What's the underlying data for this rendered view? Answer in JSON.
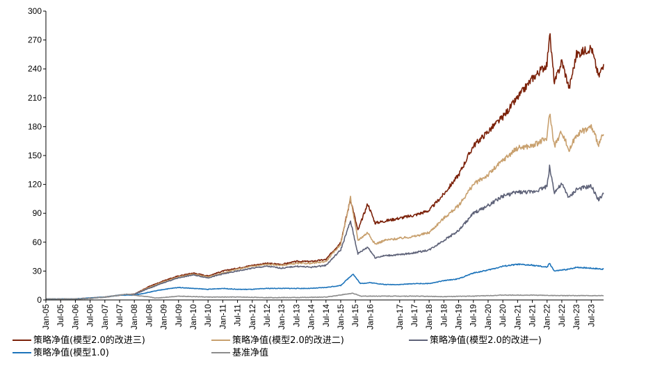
{
  "chart_data": {
    "type": "line",
    "title": "",
    "xlabel": "",
    "ylabel": "",
    "ylim": [
      0,
      300
    ],
    "y_ticks": [
      0,
      30,
      60,
      90,
      120,
      150,
      180,
      210,
      240,
      270,
      300
    ],
    "x_range": [
      "2005-01",
      "2023-12"
    ],
    "x_ticks": [
      "Jan-05",
      "Jul-05",
      "Jan-06",
      "Jul-06",
      "Jan-07",
      "Jul-07",
      "Jan-08",
      "Jul-08",
      "Jan-09",
      "Jul-09",
      "Jan-10",
      "Jul-10",
      "Jan-11",
      "Jul-11",
      "Jan-12",
      "Jul-12",
      "Jan-13",
      "Jul-13",
      "Jan-14",
      "Jul-14",
      "Jan-15",
      "Jul-15",
      "Jan-16",
      "Jan-17",
      "Jul-17",
      "Jan-18",
      "Jul-18",
      "Jan-19",
      "Jul-19",
      "Jan-20",
      "Jul-20",
      "Jan-21",
      "Jul-21",
      "Jan-22",
      "Jul-22",
      "Jan-23",
      "Jul-23"
    ],
    "grid": false,
    "legend_position": "bottom",
    "series": [
      {
        "name": "策略净值(模型2.0的改进三)",
        "color": "#7B2109",
        "points": [
          [
            "2005-01",
            1
          ],
          [
            "2006-01",
            1
          ],
          [
            "2006-07",
            2
          ],
          [
            "2007-01",
            3
          ],
          [
            "2007-07",
            5
          ],
          [
            "2008-01",
            6
          ],
          [
            "2008-07",
            14
          ],
          [
            "2009-01",
            20
          ],
          [
            "2009-07",
            25
          ],
          [
            "2010-01",
            28
          ],
          [
            "2010-07",
            25
          ],
          [
            "2011-01",
            30
          ],
          [
            "2011-07",
            33
          ],
          [
            "2012-01",
            36
          ],
          [
            "2012-07",
            38
          ],
          [
            "2013-01",
            37
          ],
          [
            "2013-07",
            40
          ],
          [
            "2014-01",
            40
          ],
          [
            "2014-07",
            42
          ],
          [
            "2015-01",
            60
          ],
          [
            "2015-05",
            105
          ],
          [
            "2015-08",
            72
          ],
          [
            "2015-12",
            100
          ],
          [
            "2016-03",
            80
          ],
          [
            "2016-07",
            82
          ],
          [
            "2017-01",
            85
          ],
          [
            "2017-07",
            88
          ],
          [
            "2018-01",
            93
          ],
          [
            "2018-07",
            110
          ],
          [
            "2019-01",
            130
          ],
          [
            "2019-07",
            160
          ],
          [
            "2020-01",
            175
          ],
          [
            "2020-07",
            190
          ],
          [
            "2021-01",
            210
          ],
          [
            "2021-07",
            230
          ],
          [
            "2022-01",
            245
          ],
          [
            "2022-02",
            278
          ],
          [
            "2022-04",
            225
          ],
          [
            "2022-07",
            248
          ],
          [
            "2022-10",
            220
          ],
          [
            "2023-01",
            255
          ],
          [
            "2023-07",
            262
          ],
          [
            "2023-10",
            232
          ],
          [
            "2023-12",
            245
          ]
        ]
      },
      {
        "name": "策略净值(模型2.0的改进二)",
        "color": "#C8A06E",
        "points": [
          [
            "2005-01",
            1
          ],
          [
            "2006-01",
            1
          ],
          [
            "2006-07",
            2
          ],
          [
            "2007-01",
            3
          ],
          [
            "2007-07",
            5
          ],
          [
            "2008-01",
            6
          ],
          [
            "2008-07",
            13
          ],
          [
            "2009-01",
            19
          ],
          [
            "2009-07",
            24
          ],
          [
            "2010-01",
            27
          ],
          [
            "2010-07",
            24
          ],
          [
            "2011-01",
            28
          ],
          [
            "2011-07",
            32
          ],
          [
            "2012-01",
            35
          ],
          [
            "2012-07",
            37
          ],
          [
            "2013-01",
            36
          ],
          [
            "2013-07",
            38
          ],
          [
            "2014-01",
            38
          ],
          [
            "2014-07",
            40
          ],
          [
            "2015-01",
            58
          ],
          [
            "2015-05",
            106
          ],
          [
            "2015-08",
            62
          ],
          [
            "2015-12",
            70
          ],
          [
            "2016-03",
            58
          ],
          [
            "2016-07",
            62
          ],
          [
            "2017-01",
            64
          ],
          [
            "2017-07",
            66
          ],
          [
            "2018-01",
            70
          ],
          [
            "2018-07",
            85
          ],
          [
            "2019-01",
            98
          ],
          [
            "2019-07",
            120
          ],
          [
            "2020-01",
            130
          ],
          [
            "2020-07",
            145
          ],
          [
            "2021-01",
            158
          ],
          [
            "2021-07",
            160
          ],
          [
            "2022-01",
            168
          ],
          [
            "2022-02",
            195
          ],
          [
            "2022-04",
            160
          ],
          [
            "2022-07",
            175
          ],
          [
            "2022-10",
            155
          ],
          [
            "2023-01",
            172
          ],
          [
            "2023-07",
            180
          ],
          [
            "2023-10",
            162
          ],
          [
            "2023-12",
            172
          ]
        ]
      },
      {
        "name": "策略净值(模型2.0的改进一)",
        "color": "#5E6278",
        "points": [
          [
            "2005-01",
            1
          ],
          [
            "2006-01",
            1
          ],
          [
            "2006-07",
            2
          ],
          [
            "2007-01",
            3
          ],
          [
            "2007-07",
            5
          ],
          [
            "2008-01",
            6
          ],
          [
            "2008-07",
            12
          ],
          [
            "2009-01",
            18
          ],
          [
            "2009-07",
            23
          ],
          [
            "2010-01",
            26
          ],
          [
            "2010-07",
            23
          ],
          [
            "2011-01",
            27
          ],
          [
            "2011-07",
            30
          ],
          [
            "2012-01",
            33
          ],
          [
            "2012-07",
            35
          ],
          [
            "2013-01",
            33
          ],
          [
            "2013-07",
            35
          ],
          [
            "2014-01",
            34
          ],
          [
            "2014-07",
            36
          ],
          [
            "2015-01",
            52
          ],
          [
            "2015-05",
            82
          ],
          [
            "2015-08",
            48
          ],
          [
            "2015-12",
            55
          ],
          [
            "2016-03",
            44
          ],
          [
            "2016-07",
            46
          ],
          [
            "2017-01",
            47
          ],
          [
            "2017-07",
            49
          ],
          [
            "2018-01",
            52
          ],
          [
            "2018-07",
            62
          ],
          [
            "2019-01",
            72
          ],
          [
            "2019-07",
            90
          ],
          [
            "2020-01",
            98
          ],
          [
            "2020-07",
            108
          ],
          [
            "2021-01",
            112
          ],
          [
            "2021-07",
            112
          ],
          [
            "2022-01",
            118
          ],
          [
            "2022-02",
            138
          ],
          [
            "2022-04",
            112
          ],
          [
            "2022-07",
            120
          ],
          [
            "2022-10",
            106
          ],
          [
            "2023-01",
            115
          ],
          [
            "2023-07",
            118
          ],
          [
            "2023-10",
            104
          ],
          [
            "2023-12",
            110
          ]
        ]
      },
      {
        "name": "策略净值(模型1.0)",
        "color": "#1C73BA",
        "points": [
          [
            "2005-01",
            1
          ],
          [
            "2006-01",
            1
          ],
          [
            "2006-07",
            2
          ],
          [
            "2007-01",
            3
          ],
          [
            "2007-07",
            5
          ],
          [
            "2008-01",
            5
          ],
          [
            "2008-07",
            8
          ],
          [
            "2009-01",
            11
          ],
          [
            "2009-07",
            13
          ],
          [
            "2010-01",
            12
          ],
          [
            "2010-07",
            11
          ],
          [
            "2011-01",
            12
          ],
          [
            "2011-07",
            11
          ],
          [
            "2012-01",
            11
          ],
          [
            "2012-07",
            12
          ],
          [
            "2013-01",
            12
          ],
          [
            "2013-07",
            12
          ],
          [
            "2014-01",
            12
          ],
          [
            "2014-07",
            13
          ],
          [
            "2015-01",
            15
          ],
          [
            "2015-06",
            27
          ],
          [
            "2015-09",
            17
          ],
          [
            "2016-01",
            18
          ],
          [
            "2016-07",
            16
          ],
          [
            "2017-01",
            16
          ],
          [
            "2017-07",
            17
          ],
          [
            "2018-01",
            17
          ],
          [
            "2018-07",
            20
          ],
          [
            "2019-01",
            22
          ],
          [
            "2019-07",
            28
          ],
          [
            "2020-01",
            31
          ],
          [
            "2020-07",
            35
          ],
          [
            "2021-01",
            37
          ],
          [
            "2021-07",
            36
          ],
          [
            "2022-01",
            34
          ],
          [
            "2022-02",
            38
          ],
          [
            "2022-04",
            30
          ],
          [
            "2022-10",
            32
          ],
          [
            "2023-01",
            34
          ],
          [
            "2023-07",
            33
          ],
          [
            "2023-12",
            32
          ]
        ]
      },
      {
        "name": "基准净值",
        "color": "#8C8C8C",
        "points": [
          [
            "2005-01",
            1
          ],
          [
            "2006-01",
            1
          ],
          [
            "2006-07",
            1.5
          ],
          [
            "2007-01",
            3
          ],
          [
            "2007-10",
            6
          ],
          [
            "2008-10",
            2
          ],
          [
            "2009-07",
            4
          ],
          [
            "2010-07",
            3
          ],
          [
            "2011-07",
            3
          ],
          [
            "2012-07",
            2.5
          ],
          [
            "2013-07",
            2.5
          ],
          [
            "2014-07",
            3
          ],
          [
            "2015-06",
            7
          ],
          [
            "2015-09",
            4
          ],
          [
            "2016-07",
            4
          ],
          [
            "2017-07",
            4
          ],
          [
            "2018-07",
            3.5
          ],
          [
            "2019-07",
            4
          ],
          [
            "2020-07",
            5
          ],
          [
            "2021-07",
            5
          ],
          [
            "2022-07",
            4.5
          ],
          [
            "2023-07",
            4.5
          ],
          [
            "2023-12",
            4.5
          ]
        ]
      }
    ]
  }
}
